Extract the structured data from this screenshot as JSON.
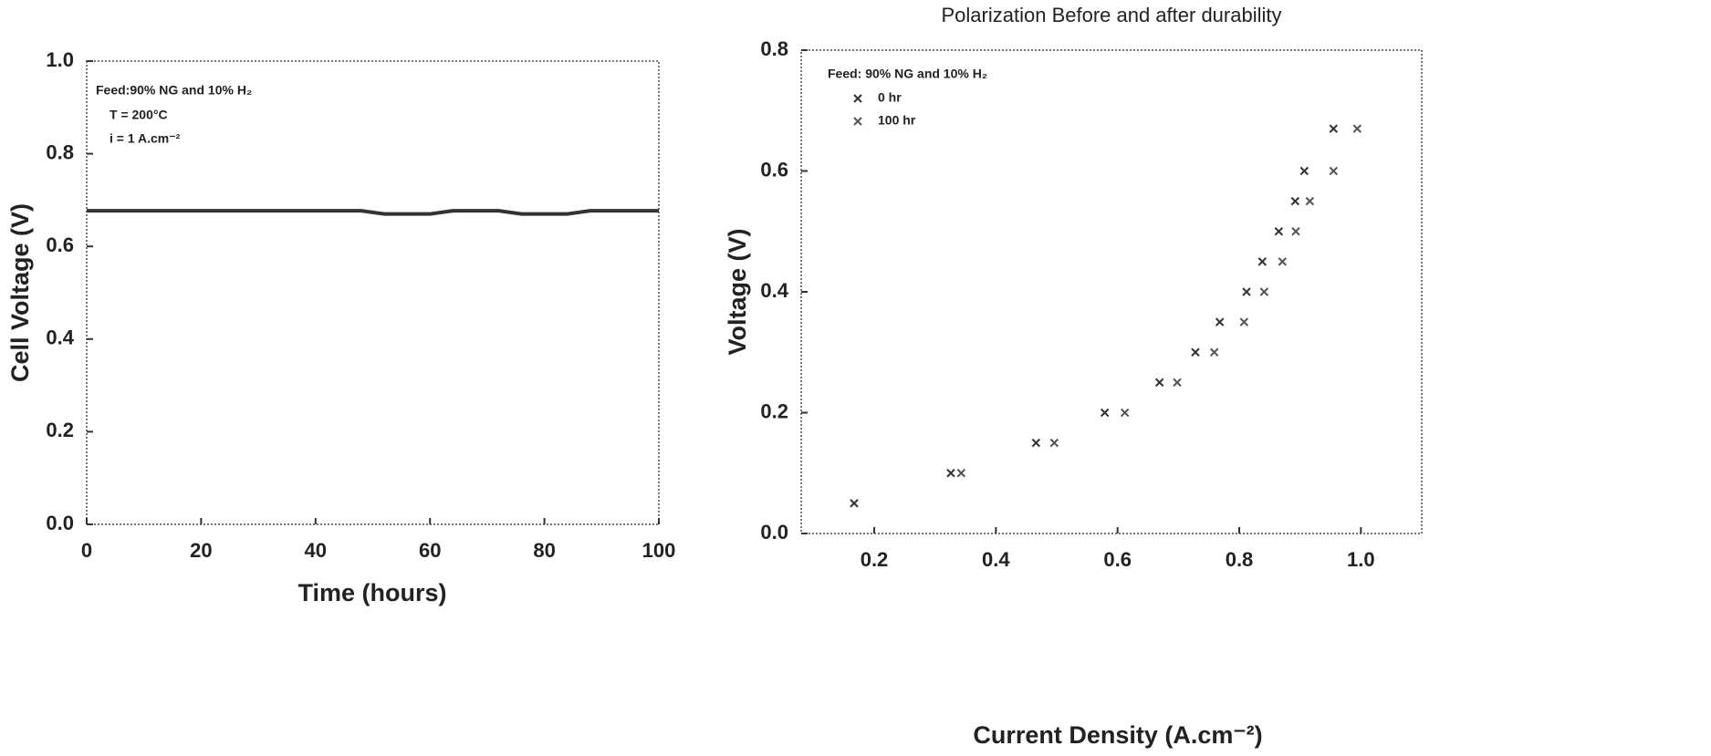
{
  "chart_data": [
    {
      "type": "line",
      "x_label": "Time (hours)",
      "y_label": "Cell Voltage (V)",
      "annotations": [
        "Feed:90% NG and 10% H₂",
        "T = 200°C",
        "i = 1 A.cm⁻²"
      ],
      "xlim": [
        0,
        100
      ],
      "xticks": [
        0,
        20,
        40,
        60,
        80,
        100
      ],
      "ylim": [
        0,
        1
      ],
      "yticks": [
        {
          "value": 0,
          "label": "0.0"
        },
        0.2,
        0.4,
        0.6,
        0.8,
        {
          "value": 1,
          "label": "1.0"
        }
      ],
      "x": [
        0,
        4,
        8,
        12,
        16,
        20,
        24,
        28,
        32,
        36,
        40,
        44,
        48,
        52,
        56,
        60,
        64,
        68,
        72,
        76,
        80,
        84,
        88,
        92,
        96,
        100
      ],
      "series": [
        {
          "color": "#333333",
          "values": [
            0.677,
            0.677,
            0.677,
            0.677,
            0.677,
            0.677,
            0.677,
            0.677,
            0.677,
            0.677,
            0.677,
            0.677,
            0.677,
            0.67,
            0.67,
            0.67,
            0.677,
            0.677,
            0.677,
            0.67,
            0.67,
            0.67,
            0.677,
            0.677,
            0.677,
            0.677
          ]
        }
      ]
    },
    {
      "type": "scatter",
      "title": "Polarization Before and after durability",
      "x_label": "Current Density (A.cm⁻²)",
      "y_label": "Voltage (V)",
      "annotations": [
        "Feed: 90% NG and 10% H₂"
      ],
      "xlim": [
        0.08,
        1.1
      ],
      "xticks": [
        0.2,
        0.4,
        0.6,
        0.8,
        {
          "value": 1,
          "label": "1.0"
        }
      ],
      "ylim": [
        0,
        0.8
      ],
      "yticks": [
        {
          "value": 0,
          "label": "0.0"
        },
        0.2,
        0.4,
        0.6,
        0.8
      ],
      "series": [
        {
          "name": "0 hr",
          "color": "#333333",
          "x": [
            0.167,
            0.326,
            0.466,
            0.579,
            0.669,
            0.728,
            0.768,
            0.812,
            0.838,
            0.865,
            0.892,
            0.907,
            0.955
          ],
          "values": [
            0.05,
            0.1,
            0.15,
            0.2,
            0.25,
            0.3,
            0.35,
            0.4,
            0.45,
            0.5,
            0.55,
            0.6,
            0.67
          ]
        },
        {
          "name": "100 hr",
          "color": "#555555",
          "x": [
            0.343,
            0.496,
            0.612,
            0.698,
            0.759,
            0.808,
            0.841,
            0.871,
            0.893,
            0.916,
            0.955,
            0.994
          ],
          "values": [
            0.1,
            0.15,
            0.2,
            0.25,
            0.3,
            0.35,
            0.4,
            0.45,
            0.5,
            0.55,
            0.6,
            0.67
          ]
        }
      ]
    }
  ]
}
